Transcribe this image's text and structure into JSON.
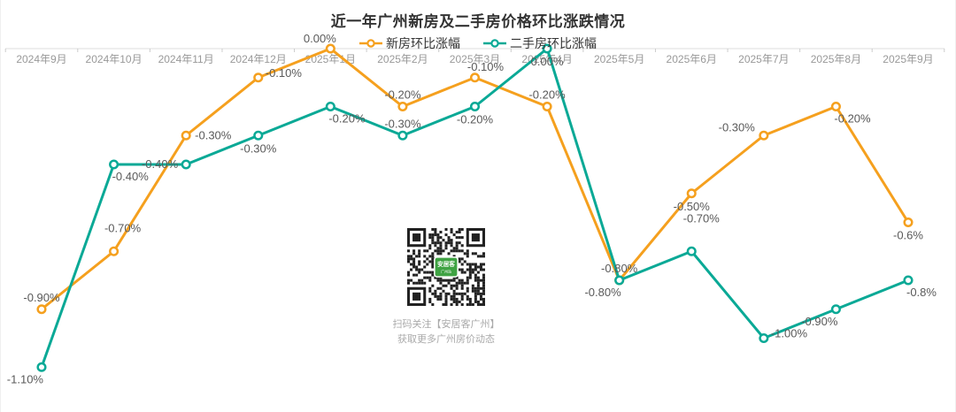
{
  "chart_data": {
    "type": "line",
    "title": "近一年广州新房及二手房价格环比涨跌情况",
    "categories": [
      "2024年9月",
      "2024年10月",
      "2024年11月",
      "2024年12月",
      "2025年1月",
      "2025年2月",
      "2025年3月",
      "2025年4月",
      "2025年5月",
      "2025年6月",
      "2025年7月",
      "2025年8月",
      "2025年9月"
    ],
    "series": [
      {
        "name": "新房环比涨幅",
        "color": "#F5A01E",
        "values": [
          -0.9,
          -0.7,
          -0.3,
          -0.1,
          0.0,
          -0.2,
          -0.1,
          -0.2,
          -0.8,
          -0.5,
          -0.3,
          -0.2,
          -0.6
        ],
        "point_labels": [
          "-0.90%",
          "-0.70%",
          "-0.30%",
          "-0.10%",
          "0.00%",
          "-0.20%",
          "-0.10%",
          "-0.20%",
          "-0.80%",
          "-0.50%",
          "-0.30%",
          "-0.20%",
          "-0.6%"
        ],
        "label_pos": [
          "top",
          "top-mid",
          "right",
          "right-top",
          "top-left",
          "top",
          "top-right",
          "top",
          "top",
          "bottom",
          "left-top",
          "bottom-right",
          "bottom"
        ]
      },
      {
        "name": "二手房环比涨幅",
        "color": "#0AA996",
        "values": [
          -1.1,
          -0.4,
          -0.4,
          -0.3,
          -0.2,
          -0.3,
          -0.2,
          0.0,
          -0.8,
          -0.7,
          -1.0,
          -0.9,
          -0.8
        ],
        "point_labels": [
          "-1.10%",
          "-0.40%",
          "-0.40%",
          "-0.30%",
          "-0.20%",
          "-0.30%",
          "-0.20%",
          "0.00%",
          "-0.80%",
          "-0.70%",
          "-1.00%",
          "-0.90%",
          "-0.8%"
        ],
        "label_pos": [
          "bottom-left",
          "bottom-right",
          "left",
          "bottom",
          "bottom-right",
          "top",
          "bottom",
          "bottom",
          "bottom-left",
          "top-high",
          "right-top",
          "bottom-left",
          "bottom-right"
        ]
      }
    ],
    "unit": "%",
    "ylim": [
      -1.2,
      0.05
    ],
    "grid": false,
    "legend_position": "top",
    "x_axis_position": "top-zero-line"
  },
  "qr_panel": {
    "caption_line1": "扫码关注【安居客广州】",
    "caption_line2": "获取更多广州房价动态",
    "logo_text": "安居客",
    "logo_subtext": "广州站"
  },
  "colors": {
    "new_home_series": "#F5A01E",
    "resale_series": "#0AA996",
    "axis_line": "#DDDDDD",
    "axis_tick": "#CCCCCC",
    "axis_label": "#999999",
    "data_label": "#595959",
    "title_text": "#333333",
    "qr_dark": "#222222",
    "qr_logo_green": "#3FA343",
    "caption_gray": "#AAAAAA"
  }
}
